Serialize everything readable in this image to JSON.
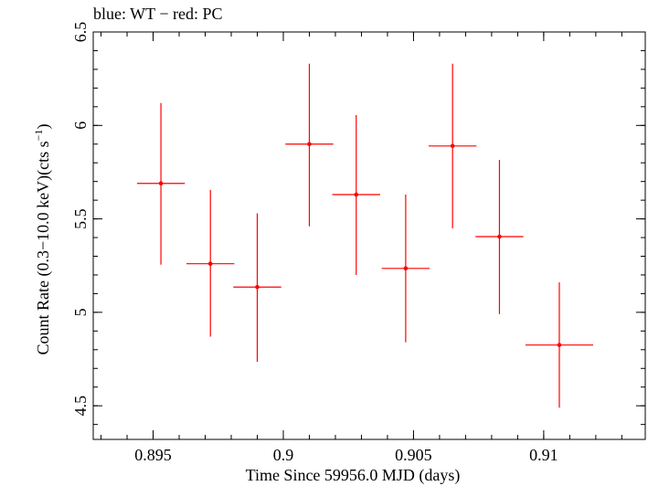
{
  "chart_data": {
    "type": "scatter",
    "title": "blue: WT − red: PC",
    "xlabel": "Time Since 59956.0 MJD (days)",
    "ylabel_main": "Count Rate (0.3−10.0 keV)(cts s",
    "ylabel_sup": "−1",
    "ylabel_end": ")",
    "xlim": [
      0.8927,
      0.9139
    ],
    "ylim": [
      4.32,
      6.5
    ],
    "xticks": [
      0.895,
      0.9,
      0.905,
      0.91
    ],
    "xtick_labels": [
      "0.895",
      "0.9",
      "0.905",
      "0.91"
    ],
    "yticks": [
      4.5,
      5,
      5.5,
      6,
      6.5
    ],
    "ytick_labels": [
      "4.5",
      "5",
      "5.5",
      "6",
      "6.5"
    ],
    "xminor_step": 0.001,
    "yminor_step": 0.1,
    "series": [
      {
        "color": "#ff0000",
        "points": [
          {
            "x": 0.8953,
            "y": 5.69,
            "xerr": 0.00092,
            "ylo": 5.255,
            "yhi": 6.12
          },
          {
            "x": 0.8972,
            "y": 5.26,
            "xerr": 0.00092,
            "ylo": 4.87,
            "yhi": 5.655
          },
          {
            "x": 0.899,
            "y": 5.135,
            "xerr": 0.00092,
            "ylo": 4.735,
            "yhi": 5.53
          },
          {
            "x": 0.901,
            "y": 5.9,
            "xerr": 0.00092,
            "ylo": 5.46,
            "yhi": 6.33
          },
          {
            "x": 0.9028,
            "y": 5.63,
            "xerr": 0.00092,
            "ylo": 5.2,
            "yhi": 6.055
          },
          {
            "x": 0.9047,
            "y": 5.235,
            "xerr": 0.00092,
            "ylo": 4.84,
            "yhi": 5.63
          },
          {
            "x": 0.9065,
            "y": 5.89,
            "xerr": 0.00092,
            "ylo": 5.45,
            "yhi": 6.33
          },
          {
            "x": 0.9083,
            "y": 5.405,
            "xerr": 0.00092,
            "ylo": 4.99,
            "yhi": 5.815
          },
          {
            "x": 0.9106,
            "y": 4.825,
            "xerr": 0.0013,
            "ylo": 4.49,
            "yhi": 5.16
          }
        ]
      }
    ]
  }
}
